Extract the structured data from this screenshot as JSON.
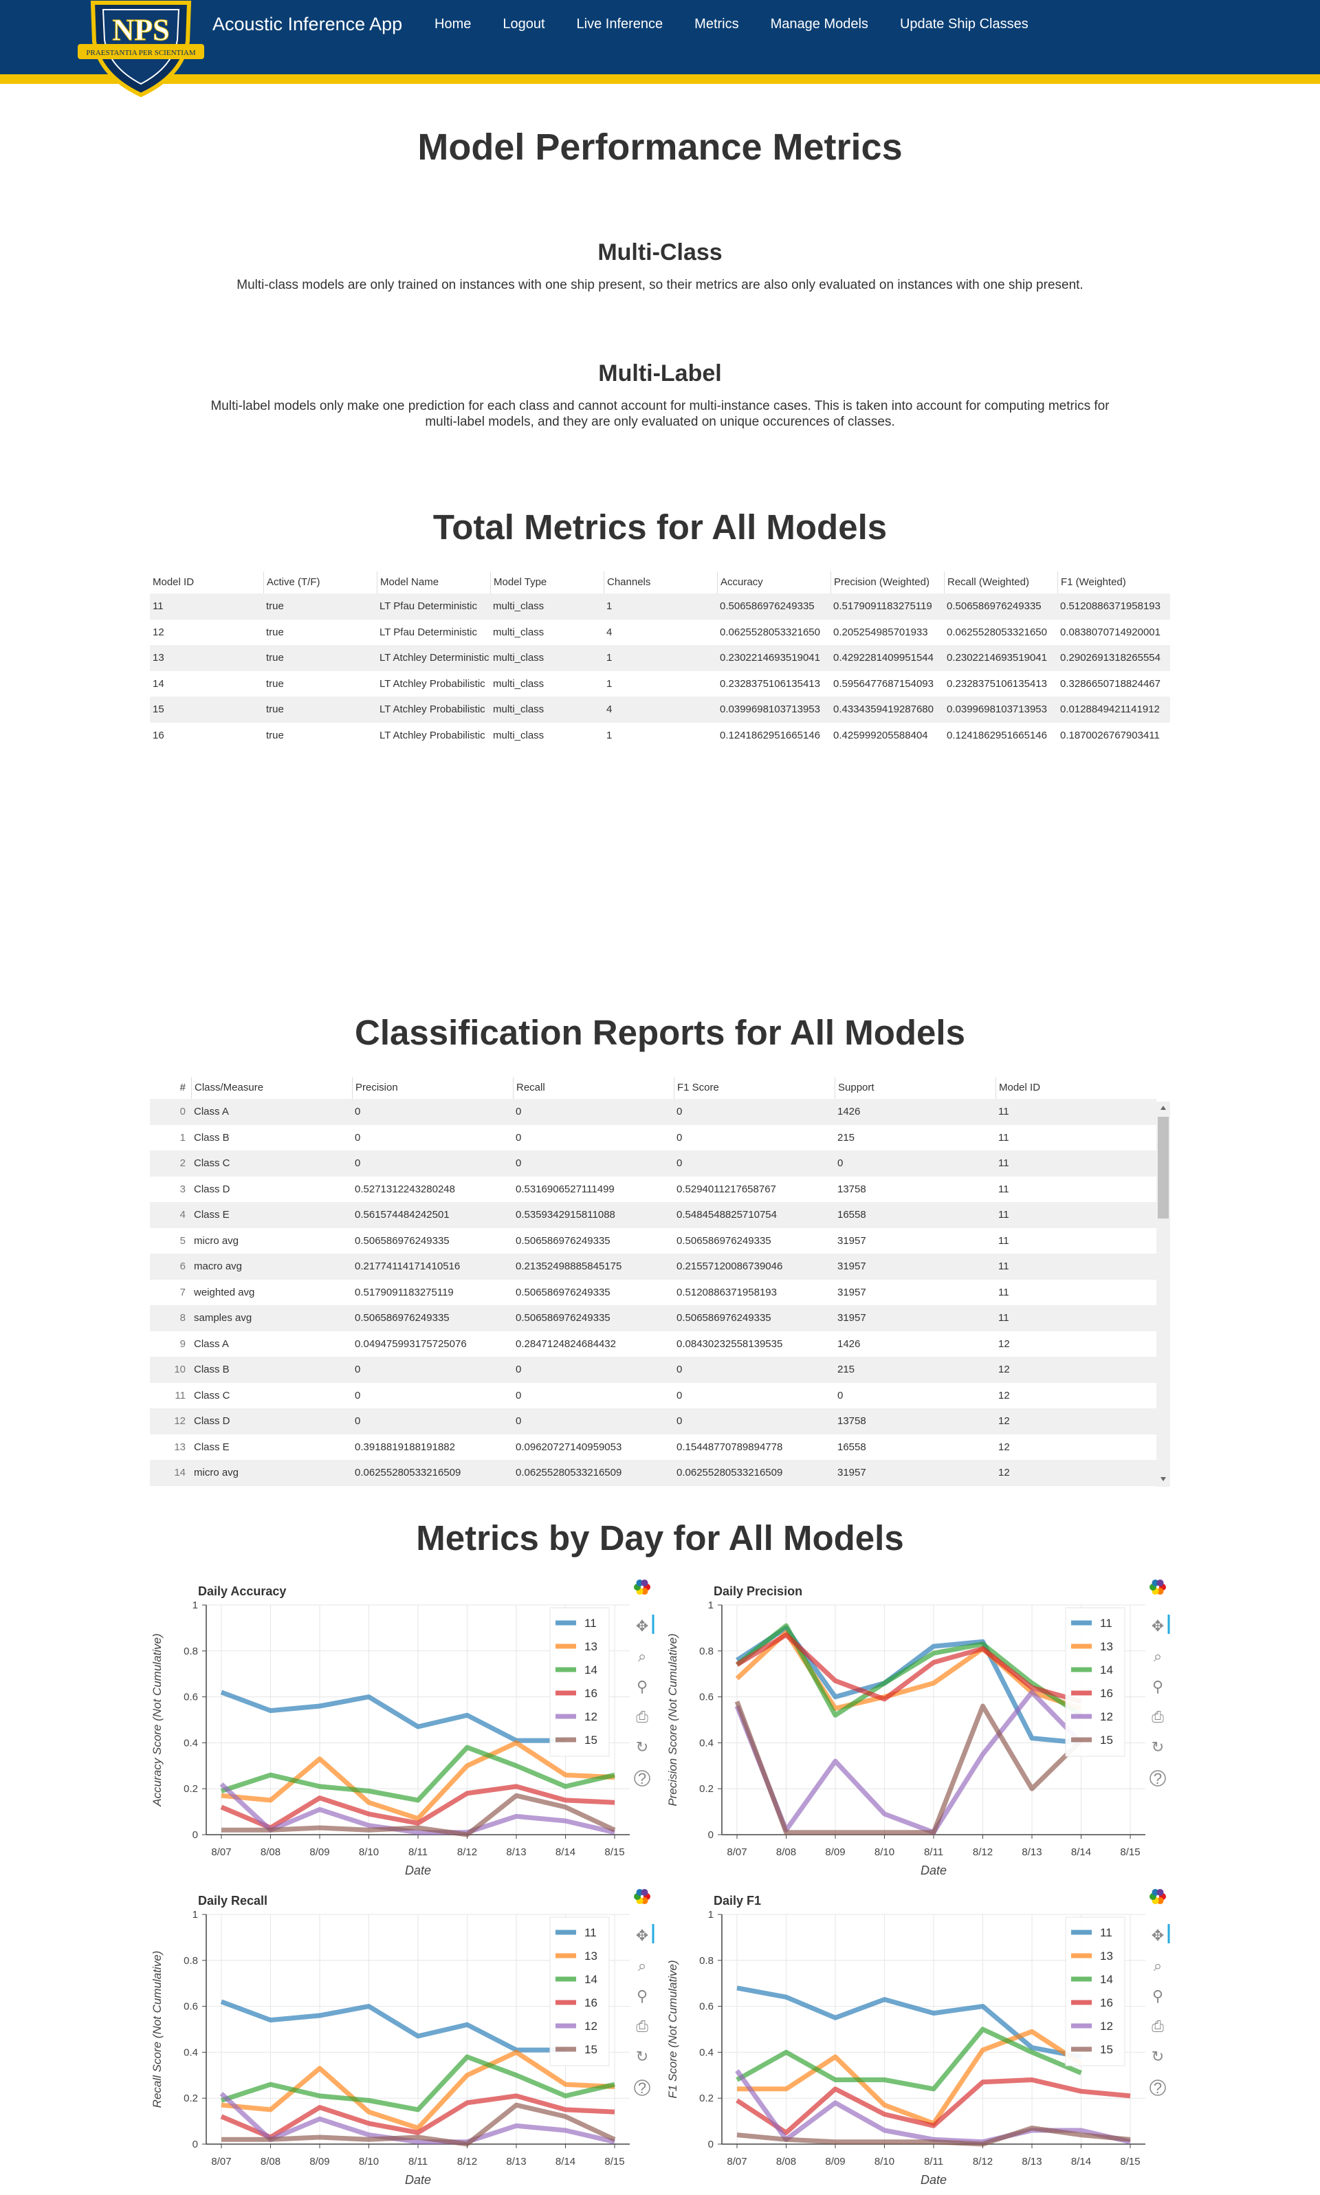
{
  "nav": {
    "brand": "Acoustic Inference App",
    "logo_text": "NPS",
    "logo_motto": "PRAESTANTIA PER SCIENTIAM",
    "links": [
      "Home",
      "Logout",
      "Live Inference",
      "Metrics",
      "Manage Models",
      "Update Ship Classes"
    ]
  },
  "page_title": "Model Performance Metrics",
  "sections": {
    "multiclass": {
      "title": "Multi-Class",
      "desc": "Multi-class models are only trained on instances with one ship present, so their metrics are also only evaluated on instances with one ship present."
    },
    "multilabel": {
      "title": "Multi-Label",
      "desc_line1": "Multi-label models only make one prediction for each class and cannot account for multi-instance cases. This is taken into account for computing metrics for",
      "desc_line2": "multi-label models, and they are only evaluated on unique occurences of classes."
    }
  },
  "totals": {
    "title": "Total Metrics for All Models",
    "columns": [
      "Model ID",
      "Active (T/F)",
      "Model Name",
      "Model Type",
      "Channels",
      "Accuracy",
      "Precision (Weighted)",
      "Recall (Weighted)",
      "F1 (Weighted)"
    ],
    "rows": [
      [
        "11",
        "true",
        "LT Pfau Deterministic",
        "multi_class",
        "1",
        "0.506586976249335",
        "0.5179091183275119",
        "0.506586976249335",
        "0.5120886371958193"
      ],
      [
        "12",
        "true",
        "LT Pfau Deterministic",
        "multi_class",
        "4",
        "0.0625528053321650",
        "0.205254985701933",
        "0.0625528053321650",
        "0.0838070714920001"
      ],
      [
        "13",
        "true",
        "LT Atchley Deterministic",
        "multi_class",
        "1",
        "0.2302214693519041",
        "0.4292281409951544",
        "0.2302214693519041",
        "0.2902691318265554"
      ],
      [
        "14",
        "true",
        "LT Atchley Probabilistic",
        "multi_class",
        "1",
        "0.2328375106135413",
        "0.5956477687154093",
        "0.2328375106135413",
        "0.3286650718824467"
      ],
      [
        "15",
        "true",
        "LT Atchley Probabilistic",
        "multi_class",
        "4",
        "0.0399698103713953",
        "0.4334359419287680",
        "0.0399698103713953",
        "0.0128849421141912"
      ],
      [
        "16",
        "true",
        "LT Atchley Probabilistic",
        "multi_class",
        "1",
        "0.1241862951665146",
        "0.425999205588404",
        "0.1241862951665146",
        "0.1870026767903411"
      ]
    ]
  },
  "reports": {
    "title": "Classification Reports for All Models",
    "columns": [
      "#",
      "Class/Measure",
      "Precision",
      "Recall",
      "F1 Score",
      "Support",
      "Model ID"
    ],
    "rows": [
      [
        "0",
        "Class A",
        "0",
        "0",
        "0",
        "1426",
        "11"
      ],
      [
        "1",
        "Class B",
        "0",
        "0",
        "0",
        "215",
        "11"
      ],
      [
        "2",
        "Class C",
        "0",
        "0",
        "0",
        "0",
        "11"
      ],
      [
        "3",
        "Class D",
        "0.5271312243280248",
        "0.5316906527111499",
        "0.5294011217658767",
        "13758",
        "11"
      ],
      [
        "4",
        "Class E",
        "0.561574484242501",
        "0.5359342915811088",
        "0.5484548825710754",
        "16558",
        "11"
      ],
      [
        "5",
        "micro avg",
        "0.506586976249335",
        "0.506586976249335",
        "0.506586976249335",
        "31957",
        "11"
      ],
      [
        "6",
        "macro avg",
        "0.21774114171410516",
        "0.21352498885845175",
        "0.21557120086739046",
        "31957",
        "11"
      ],
      [
        "7",
        "weighted avg",
        "0.5179091183275119",
        "0.506586976249335",
        "0.5120886371958193",
        "31957",
        "11"
      ],
      [
        "8",
        "samples avg",
        "0.506586976249335",
        "0.506586976249335",
        "0.506586976249335",
        "31957",
        "11"
      ],
      [
        "9",
        "Class A",
        "0.049475993175725076",
        "0.2847124824684432",
        "0.08430232558139535",
        "1426",
        "12"
      ],
      [
        "10",
        "Class B",
        "0",
        "0",
        "0",
        "215",
        "12"
      ],
      [
        "11",
        "Class C",
        "0",
        "0",
        "0",
        "0",
        "12"
      ],
      [
        "12",
        "Class D",
        "0",
        "0",
        "0",
        "13758",
        "12"
      ],
      [
        "13",
        "Class E",
        "0.3918819188191882",
        "0.09620727140959053",
        "0.15448770789894778",
        "16558",
        "12"
      ],
      [
        "14",
        "micro avg",
        "0.0625528053321650​9",
        "0.0625528053321650​9",
        "0.0625528053321650​9",
        "31957",
        "12"
      ]
    ]
  },
  "daily": {
    "title": "Metrics by Day for All Models",
    "colors": {
      "11": "#1f77b4",
      "13": "#ff7f0e",
      "14": "#2ca02c",
      "16": "#d62728",
      "12": "#9467bd",
      "15": "#8c564b"
    },
    "xlabel": "Date",
    "dates": [
      "8/07",
      "8/08",
      "8/09",
      "8/10",
      "8/11",
      "8/12",
      "8/13",
      "8/14",
      "8/15"
    ],
    "charts": [
      {
        "title": "Daily Accuracy",
        "ylabel": "Accuracy Score (Not Cumulative)",
        "series": [
          {
            "name": "11",
            "values": [
              0.62,
              0.54,
              0.56,
              0.6,
              0.47,
              0.52,
              0.41,
              0.41,
              null
            ]
          },
          {
            "name": "13",
            "values": [
              0.17,
              0.15,
              0.33,
              0.14,
              0.07,
              0.3,
              0.4,
              0.26,
              0.25
            ]
          },
          {
            "name": "14",
            "values": [
              0.19,
              0.26,
              0.21,
              0.19,
              0.15,
              0.38,
              0.3,
              0.21,
              0.26
            ]
          },
          {
            "name": "16",
            "values": [
              0.12,
              0.03,
              0.16,
              0.09,
              0.05,
              0.18,
              0.21,
              0.15,
              0.14
            ]
          },
          {
            "name": "12",
            "values": [
              0.22,
              0.02,
              0.11,
              0.04,
              0.01,
              0.01,
              0.08,
              0.06,
              0.01
            ]
          },
          {
            "name": "15",
            "values": [
              0.02,
              0.02,
              0.03,
              0.02,
              0.03,
              0.0,
              0.17,
              0.12,
              0.02
            ]
          }
        ]
      },
      {
        "title": "Daily Precision",
        "ylabel": "Precision Score (Not Cumulative)",
        "series": [
          {
            "name": "11",
            "values": [
              0.76,
              0.9,
              0.6,
              0.66,
              0.82,
              0.84,
              0.42,
              0.4,
              null
            ]
          },
          {
            "name": "13",
            "values": [
              0.68,
              0.88,
              0.55,
              0.6,
              0.66,
              0.81,
              0.62,
              0.55,
              null
            ]
          },
          {
            "name": "14",
            "values": [
              0.74,
              0.91,
              0.52,
              0.66,
              0.79,
              0.83,
              0.66,
              0.52,
              null
            ]
          },
          {
            "name": "16",
            "values": [
              0.74,
              0.87,
              0.67,
              0.59,
              0.75,
              0.81,
              0.64,
              0.58,
              null
            ]
          },
          {
            "name": "12",
            "values": [
              0.56,
              0.02,
              0.32,
              0.09,
              0.01,
              0.35,
              0.62,
              0.4,
              null
            ]
          },
          {
            "name": "15",
            "values": [
              0.58,
              0.01,
              0.01,
              0.01,
              0.01,
              0.56,
              0.2,
              0.41,
              null
            ]
          }
        ]
      },
      {
        "title": "Daily Recall",
        "ylabel": "Recall Score (Not Cumulative)",
        "series": [
          {
            "name": "11",
            "values": [
              0.62,
              0.54,
              0.56,
              0.6,
              0.47,
              0.52,
              0.41,
              0.41,
              null
            ]
          },
          {
            "name": "13",
            "values": [
              0.17,
              0.15,
              0.33,
              0.14,
              0.07,
              0.3,
              0.4,
              0.26,
              0.25
            ]
          },
          {
            "name": "14",
            "values": [
              0.19,
              0.26,
              0.21,
              0.19,
              0.15,
              0.38,
              0.3,
              0.21,
              0.26
            ]
          },
          {
            "name": "16",
            "values": [
              0.12,
              0.03,
              0.16,
              0.09,
              0.05,
              0.18,
              0.21,
              0.15,
              0.14
            ]
          },
          {
            "name": "12",
            "values": [
              0.22,
              0.02,
              0.11,
              0.04,
              0.01,
              0.01,
              0.08,
              0.06,
              0.01
            ]
          },
          {
            "name": "15",
            "values": [
              0.02,
              0.02,
              0.03,
              0.02,
              0.03,
              0.0,
              0.17,
              0.12,
              0.02
            ]
          }
        ]
      },
      {
        "title": "Daily F1",
        "ylabel": "F1 Score (Not Cumulative)",
        "series": [
          {
            "name": "11",
            "values": [
              0.68,
              0.64,
              0.55,
              0.63,
              0.57,
              0.6,
              0.42,
              0.38,
              null
            ]
          },
          {
            "name": "13",
            "values": [
              0.24,
              0.24,
              0.38,
              0.17,
              0.09,
              0.41,
              0.49,
              0.35,
              null
            ]
          },
          {
            "name": "14",
            "values": [
              0.28,
              0.4,
              0.28,
              0.28,
              0.24,
              0.5,
              0.4,
              0.31,
              null
            ]
          },
          {
            "name": "16",
            "values": [
              0.19,
              0.05,
              0.24,
              0.13,
              0.08,
              0.27,
              0.28,
              0.23,
              0.21
            ]
          },
          {
            "name": "12",
            "values": [
              0.32,
              0.02,
              0.18,
              0.06,
              0.02,
              0.01,
              0.06,
              0.06,
              0.01
            ]
          },
          {
            "name": "15",
            "values": [
              0.04,
              0.02,
              0.01,
              0.01,
              0.01,
              0.0,
              0.07,
              0.04,
              0.02
            ]
          }
        ]
      }
    ]
  },
  "chart_data": [
    {
      "type": "line",
      "title": "Daily Accuracy",
      "xlabel": "Date",
      "ylabel": "Accuracy Score (Not Cumulative)",
      "ylim": [
        0,
        1
      ],
      "categories": [
        "8/07",
        "8/08",
        "8/09",
        "8/10",
        "8/11",
        "8/12",
        "8/13",
        "8/14",
        "8/15"
      ],
      "series": [
        {
          "name": "11",
          "values": [
            0.62,
            0.54,
            0.56,
            0.6,
            0.47,
            0.52,
            0.41,
            0.41,
            null
          ]
        },
        {
          "name": "13",
          "values": [
            0.17,
            0.15,
            0.33,
            0.14,
            0.07,
            0.3,
            0.4,
            0.26,
            0.25
          ]
        },
        {
          "name": "14",
          "values": [
            0.19,
            0.26,
            0.21,
            0.19,
            0.15,
            0.38,
            0.3,
            0.21,
            0.26
          ]
        },
        {
          "name": "16",
          "values": [
            0.12,
            0.03,
            0.16,
            0.09,
            0.05,
            0.18,
            0.21,
            0.15,
            0.14
          ]
        },
        {
          "name": "12",
          "values": [
            0.22,
            0.02,
            0.11,
            0.04,
            0.01,
            0.01,
            0.08,
            0.06,
            0.01
          ]
        },
        {
          "name": "15",
          "values": [
            0.02,
            0.02,
            0.03,
            0.02,
            0.03,
            0.0,
            0.17,
            0.12,
            0.02
          ]
        }
      ]
    },
    {
      "type": "line",
      "title": "Daily Precision",
      "xlabel": "Date",
      "ylabel": "Precision Score (Not Cumulative)",
      "ylim": [
        0,
        1
      ],
      "categories": [
        "8/07",
        "8/08",
        "8/09",
        "8/10",
        "8/11",
        "8/12",
        "8/13",
        "8/14",
        "8/15"
      ],
      "series": [
        {
          "name": "11",
          "values": [
            0.76,
            0.9,
            0.6,
            0.66,
            0.82,
            0.84,
            0.42,
            0.4,
            null
          ]
        },
        {
          "name": "13",
          "values": [
            0.68,
            0.88,
            0.55,
            0.6,
            0.66,
            0.81,
            0.62,
            0.55,
            null
          ]
        },
        {
          "name": "14",
          "values": [
            0.74,
            0.91,
            0.52,
            0.66,
            0.79,
            0.83,
            0.66,
            0.52,
            null
          ]
        },
        {
          "name": "16",
          "values": [
            0.74,
            0.87,
            0.67,
            0.59,
            0.75,
            0.81,
            0.64,
            0.58,
            null
          ]
        },
        {
          "name": "12",
          "values": [
            0.56,
            0.02,
            0.32,
            0.09,
            0.01,
            0.35,
            0.62,
            0.4,
            null
          ]
        },
        {
          "name": "15",
          "values": [
            0.58,
            0.01,
            0.01,
            0.01,
            0.01,
            0.56,
            0.2,
            0.41,
            null
          ]
        }
      ]
    },
    {
      "type": "line",
      "title": "Daily Recall",
      "xlabel": "Date",
      "ylabel": "Recall Score (Not Cumulative)",
      "ylim": [
        0,
        1
      ],
      "categories": [
        "8/07",
        "8/08",
        "8/09",
        "8/10",
        "8/11",
        "8/12",
        "8/13",
        "8/14",
        "8/15"
      ],
      "series": [
        {
          "name": "11",
          "values": [
            0.62,
            0.54,
            0.56,
            0.6,
            0.47,
            0.52,
            0.41,
            0.41,
            null
          ]
        },
        {
          "name": "13",
          "values": [
            0.17,
            0.15,
            0.33,
            0.14,
            0.07,
            0.3,
            0.4,
            0.26,
            0.25
          ]
        },
        {
          "name": "14",
          "values": [
            0.19,
            0.26,
            0.21,
            0.19,
            0.15,
            0.38,
            0.3,
            0.21,
            0.26
          ]
        },
        {
          "name": "16",
          "values": [
            0.12,
            0.03,
            0.16,
            0.09,
            0.05,
            0.18,
            0.21,
            0.15,
            0.14
          ]
        },
        {
          "name": "12",
          "values": [
            0.22,
            0.02,
            0.11,
            0.04,
            0.01,
            0.01,
            0.08,
            0.06,
            0.01
          ]
        },
        {
          "name": "15",
          "values": [
            0.02,
            0.02,
            0.03,
            0.02,
            0.03,
            0.0,
            0.17,
            0.12,
            0.02
          ]
        }
      ]
    },
    {
      "type": "line",
      "title": "Daily F1",
      "xlabel": "Date",
      "ylabel": "F1 Score (Not Cumulative)",
      "ylim": [
        0,
        1
      ],
      "categories": [
        "8/07",
        "8/08",
        "8/09",
        "8/10",
        "8/11",
        "8/12",
        "8/13",
        "8/14",
        "8/15"
      ],
      "series": [
        {
          "name": "11",
          "values": [
            0.68,
            0.64,
            0.55,
            0.63,
            0.57,
            0.6,
            0.42,
            0.38,
            null
          ]
        },
        {
          "name": "13",
          "values": [
            0.24,
            0.24,
            0.38,
            0.17,
            0.09,
            0.41,
            0.49,
            0.35,
            null
          ]
        },
        {
          "name": "14",
          "values": [
            0.28,
            0.4,
            0.28,
            0.28,
            0.24,
            0.5,
            0.4,
            0.31,
            null
          ]
        },
        {
          "name": "16",
          "values": [
            0.19,
            0.05,
            0.24,
            0.13,
            0.08,
            0.27,
            0.28,
            0.23,
            0.21
          ]
        },
        {
          "name": "12",
          "values": [
            0.32,
            0.02,
            0.18,
            0.06,
            0.02,
            0.01,
            0.06,
            0.06,
            0.01
          ]
        },
        {
          "name": "15",
          "values": [
            0.04,
            0.02,
            0.01,
            0.01,
            0.01,
            0.0,
            0.07,
            0.04,
            0.02
          ]
        }
      ]
    }
  ]
}
